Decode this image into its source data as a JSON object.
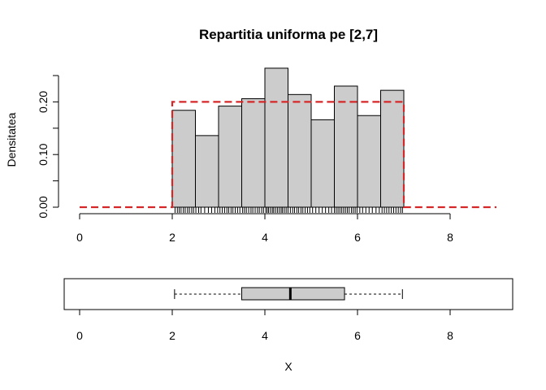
{
  "chart_data": [
    {
      "type": "bar",
      "subtype": "histogram",
      "title": "Repartitia uniforma pe [2,7]",
      "ylabel": "Densitatea",
      "xlabel": "",
      "xlim": [
        0,
        9
      ],
      "ylim": [
        0,
        0.26
      ],
      "x_ticks": [
        "0",
        "2",
        "4",
        "6",
        "8"
      ],
      "y_ticks": [
        "0.00",
        "0.10",
        "0.20"
      ],
      "bins": [
        {
          "from": 2.0,
          "to": 2.5,
          "density": 0.184
        },
        {
          "from": 2.5,
          "to": 3.0,
          "density": 0.136
        },
        {
          "from": 3.0,
          "to": 3.5,
          "density": 0.192
        },
        {
          "from": 3.5,
          "to": 4.0,
          "density": 0.206
        },
        {
          "from": 4.0,
          "to": 4.5,
          "density": 0.264
        },
        {
          "from": 4.5,
          "to": 5.0,
          "density": 0.214
        },
        {
          "from": 5.0,
          "to": 5.5,
          "density": 0.166
        },
        {
          "from": 5.5,
          "to": 6.0,
          "density": 0.23
        },
        {
          "from": 6.0,
          "to": 6.5,
          "density": 0.174
        },
        {
          "from": 6.5,
          "to": 7.0,
          "density": 0.222
        }
      ],
      "density_curve": {
        "style": "dashed",
        "color": "#d62728",
        "points": [
          [
            0.0,
            0
          ],
          [
            2.0,
            0
          ],
          [
            2.0,
            0.2
          ],
          [
            7.0,
            0.2
          ],
          [
            7.0,
            0
          ],
          [
            9.0,
            0
          ]
        ]
      },
      "rug": [
        2.06,
        2.11,
        2.15,
        2.19,
        2.24,
        2.28,
        2.33,
        2.37,
        2.42,
        2.46,
        2.51,
        2.57,
        2.62,
        2.7,
        2.78,
        2.85,
        2.92,
        2.98,
        3.03,
        3.08,
        3.13,
        3.18,
        3.22,
        3.27,
        3.31,
        3.36,
        3.41,
        3.46,
        3.52,
        3.56,
        3.6,
        3.65,
        3.7,
        3.74,
        3.79,
        3.84,
        3.88,
        3.93,
        3.97,
        4.02,
        4.05,
        4.08,
        4.12,
        4.16,
        4.19,
        4.23,
        4.27,
        4.31,
        4.35,
        4.38,
        4.42,
        4.46,
        4.5,
        4.55,
        4.6,
        4.64,
        4.69,
        4.73,
        4.78,
        4.82,
        4.87,
        4.92,
        4.97,
        5.03,
        5.1,
        5.17,
        5.24,
        5.31,
        5.38,
        5.44,
        5.5,
        5.54,
        5.58,
        5.62,
        5.66,
        5.7,
        5.74,
        5.78,
        5.82,
        5.87,
        5.91,
        5.95,
        5.99,
        6.05,
        6.11,
        6.18,
        6.25,
        6.32,
        6.4,
        6.47,
        6.53,
        6.58,
        6.63,
        6.68,
        6.73,
        6.78,
        6.83,
        6.88,
        6.93,
        6.97
      ],
      "colors": {
        "bar_fill": "#cccccc",
        "bar_stroke": "#000000",
        "curve": "#d62728"
      }
    },
    {
      "type": "boxplot",
      "orientation": "horizontal",
      "xlabel": "X",
      "xlim": [
        0,
        9
      ],
      "x_ticks": [
        "0",
        "2",
        "4",
        "6",
        "8"
      ],
      "whisker_low": 2.05,
      "q1": 3.5,
      "median": 4.55,
      "q3": 5.72,
      "whisker_high": 6.97,
      "colors": {
        "box_fill": "#cccccc",
        "stroke": "#000000"
      }
    }
  ]
}
